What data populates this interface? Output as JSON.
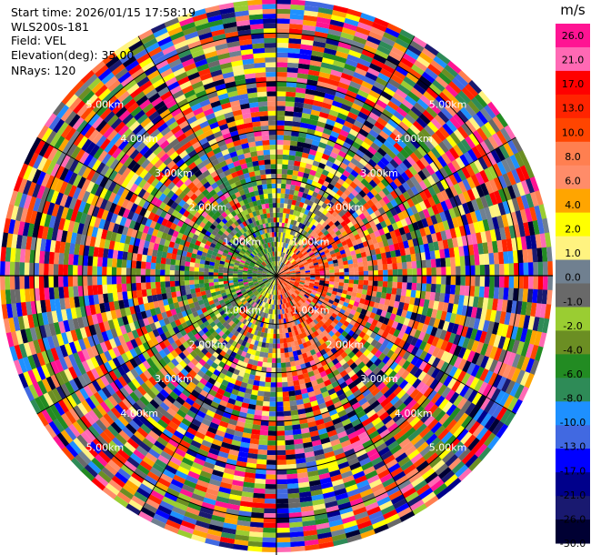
{
  "info": {
    "start_time": "Start time: 2026/01/15 17:58:19",
    "instrument": "WLS200s-181",
    "field": "Field: VEL",
    "elevation": "Elevation(deg): 35.00",
    "nrays": "NRays: 120"
  },
  "chart_data": {
    "type": "heatmap",
    "projection": "polar (PPI)",
    "field": "VEL",
    "n_rays": 120,
    "range_rings_km": [
      1.0,
      2.0,
      3.0,
      4.0,
      5.0
    ],
    "range_labels": [
      "1.00km",
      "2.00km",
      "3.00km",
      "4.00km",
      "5.00km"
    ],
    "colorbar": {
      "unit": "m/s",
      "tick_labels": [
        "26.0",
        "21.0",
        "17.0",
        "13.0",
        "10.0",
        "8.0",
        "6.0",
        "4.0",
        "2.0",
        "1.0",
        "0.0",
        "-1.0",
        "-2.0",
        "-4.0",
        "-6.0",
        "-8.0",
        "-10.0",
        "-13.0",
        "-17.0",
        "-21.0",
        "-26.0",
        "-30.0"
      ],
      "colors": [
        "#ff1493",
        "#ff69b4",
        "#ff0000",
        "#ff2400",
        "#ff4500",
        "#ff7f50",
        "#ff8c69",
        "#ffa500",
        "#ffff00",
        "#fff380",
        "#708090",
        "#696969",
        "#9acd32",
        "#6b8e23",
        "#228b22",
        "#2e8b57",
        "#1e90ff",
        "#4169e1",
        "#0000ff",
        "#00008b",
        "#191970",
        "#000033"
      ]
    }
  }
}
